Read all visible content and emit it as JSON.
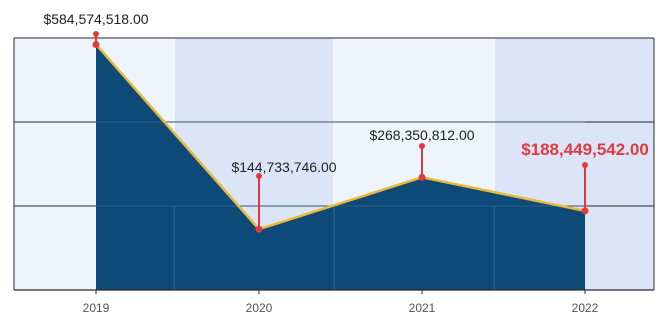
{
  "chart_data": {
    "type": "area",
    "title": "",
    "xlabel": "",
    "ylabel": "",
    "categories": [
      "2019",
      "2020",
      "2021",
      "2022"
    ],
    "series": [
      {
        "values": [
          584574518.0,
          144733746.0,
          268350812.0,
          188449542.0
        ],
        "labels": [
          "$584,574,518.00",
          "$144,733,746.00",
          "$268,350,812.00",
          "$188,449,542.00"
        ],
        "highlight_index": 3
      }
    ],
    "ylim": [
      0,
      600000000
    ],
    "grid": true,
    "legend": "none",
    "colors": {
      "area_fill": "#0e4a78",
      "line": "#e8b93a",
      "marker": "#e03a3e",
      "highlight_label": "#e03a3e",
      "label": "#1f1f1f",
      "band_light": "#eef4fc",
      "band_dark": "#dbe5f7",
      "grid": "#2a2a2a",
      "tick_label": "#555555"
    }
  }
}
